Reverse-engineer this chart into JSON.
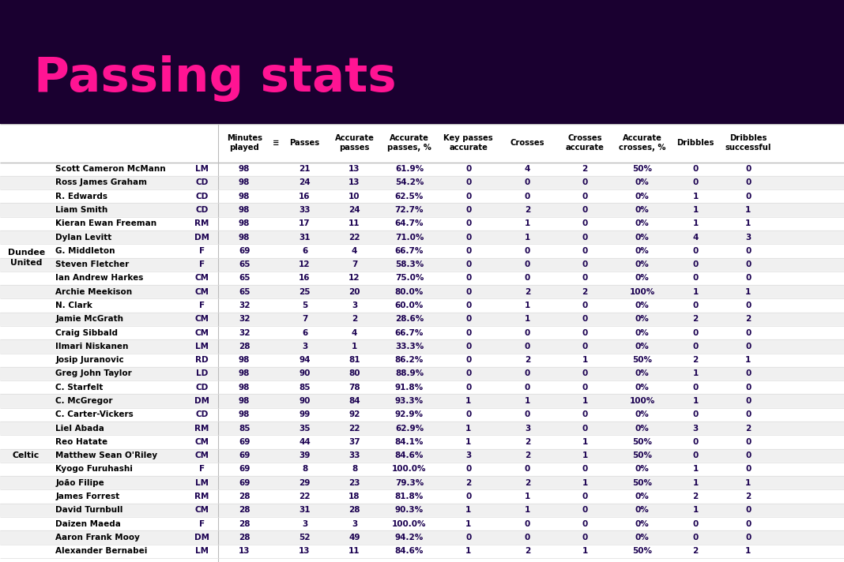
{
  "title": "Passing stats",
  "title_color": "#FF1493",
  "bg_color": "#1a0030",
  "table_bg": "#ffffff",
  "col_headers": [
    "Minutes\nplayed",
    "≡",
    "Passes",
    "Accurate\npasses",
    "Accurate\npasses, %",
    "Key passes\naccurate",
    "Crosses",
    "Crosses\naccurate",
    "Accurate\ncrosses, %",
    "Dribbles",
    "Dribbles\nsuccessful"
  ],
  "rows": [
    [
      "Scott Cameron McMann",
      "LM",
      "98",
      "21",
      "13",
      "61.9%",
      "0",
      "4",
      "2",
      "50%",
      "0",
      "0"
    ],
    [
      "Ross James Graham",
      "CD",
      "98",
      "24",
      "13",
      "54.2%",
      "0",
      "0",
      "0",
      "0%",
      "0",
      "0"
    ],
    [
      "R. Edwards",
      "CD",
      "98",
      "16",
      "10",
      "62.5%",
      "0",
      "0",
      "0",
      "0%",
      "1",
      "0"
    ],
    [
      "Liam Smith",
      "CD",
      "98",
      "33",
      "24",
      "72.7%",
      "0",
      "2",
      "0",
      "0%",
      "1",
      "1"
    ],
    [
      "Kieran Ewan Freeman",
      "RM",
      "98",
      "17",
      "11",
      "64.7%",
      "0",
      "1",
      "0",
      "0%",
      "1",
      "1"
    ],
    [
      "Dylan Levitt",
      "DM",
      "98",
      "31",
      "22",
      "71.0%",
      "0",
      "1",
      "0",
      "0%",
      "4",
      "3"
    ],
    [
      "G. Middleton",
      "F",
      "69",
      "6",
      "4",
      "66.7%",
      "0",
      "0",
      "0",
      "0%",
      "0",
      "0"
    ],
    [
      "Steven Fletcher",
      "F",
      "65",
      "12",
      "7",
      "58.3%",
      "0",
      "0",
      "0",
      "0%",
      "0",
      "0"
    ],
    [
      "Ian Andrew Harkes",
      "CM",
      "65",
      "16",
      "12",
      "75.0%",
      "0",
      "0",
      "0",
      "0%",
      "0",
      "0"
    ],
    [
      "Archie Meekison",
      "CM",
      "65",
      "25",
      "20",
      "80.0%",
      "0",
      "2",
      "2",
      "100%",
      "1",
      "1"
    ],
    [
      "N. Clark",
      "F",
      "32",
      "5",
      "3",
      "60.0%",
      "0",
      "1",
      "0",
      "0%",
      "0",
      "0"
    ],
    [
      "Jamie McGrath",
      "CM",
      "32",
      "7",
      "2",
      "28.6%",
      "0",
      "1",
      "0",
      "0%",
      "2",
      "2"
    ],
    [
      "Craig Sibbald",
      "CM",
      "32",
      "6",
      "4",
      "66.7%",
      "0",
      "0",
      "0",
      "0%",
      "0",
      "0"
    ],
    [
      "Ilmari Niskanen",
      "LM",
      "28",
      "3",
      "1",
      "33.3%",
      "0",
      "0",
      "0",
      "0%",
      "0",
      "0"
    ],
    [
      "Josip Juranovic",
      "RD",
      "98",
      "94",
      "81",
      "86.2%",
      "0",
      "2",
      "1",
      "50%",
      "2",
      "1"
    ],
    [
      "Greg John Taylor",
      "LD",
      "98",
      "90",
      "80",
      "88.9%",
      "0",
      "0",
      "0",
      "0%",
      "1",
      "0"
    ],
    [
      "C. Starfelt",
      "CD",
      "98",
      "85",
      "78",
      "91.8%",
      "0",
      "0",
      "0",
      "0%",
      "0",
      "0"
    ],
    [
      "C. McGregor",
      "DM",
      "98",
      "90",
      "84",
      "93.3%",
      "1",
      "1",
      "1",
      "100%",
      "1",
      "0"
    ],
    [
      "C. Carter-Vickers",
      "CD",
      "98",
      "99",
      "92",
      "92.9%",
      "0",
      "0",
      "0",
      "0%",
      "0",
      "0"
    ],
    [
      "Liel Abada",
      "RM",
      "85",
      "35",
      "22",
      "62.9%",
      "1",
      "3",
      "0",
      "0%",
      "3",
      "2"
    ],
    [
      "Reo Hatate",
      "CM",
      "69",
      "44",
      "37",
      "84.1%",
      "1",
      "2",
      "1",
      "50%",
      "0",
      "0"
    ],
    [
      "Matthew Sean O'Riley",
      "CM",
      "69",
      "39",
      "33",
      "84.6%",
      "3",
      "2",
      "1",
      "50%",
      "0",
      "0"
    ],
    [
      "Kyogo Furuhashi",
      "F",
      "69",
      "8",
      "8",
      "100.0%",
      "0",
      "0",
      "0",
      "0%",
      "1",
      "0"
    ],
    [
      "João Filipe",
      "LM",
      "69",
      "29",
      "23",
      "79.3%",
      "2",
      "2",
      "1",
      "50%",
      "1",
      "1"
    ],
    [
      "James Forrest",
      "RM",
      "28",
      "22",
      "18",
      "81.8%",
      "0",
      "1",
      "0",
      "0%",
      "2",
      "2"
    ],
    [
      "David Turnbull",
      "CM",
      "28",
      "31",
      "28",
      "90.3%",
      "1",
      "1",
      "0",
      "0%",
      "1",
      "0"
    ],
    [
      "Daizen Maeda",
      "F",
      "28",
      "3",
      "3",
      "100.0%",
      "1",
      "0",
      "0",
      "0%",
      "0",
      "0"
    ],
    [
      "Aaron Frank Mooy",
      "DM",
      "28",
      "52",
      "49",
      "94.2%",
      "0",
      "0",
      "0",
      "0%",
      "0",
      "0"
    ],
    [
      "Alexander Bernabei",
      "LM",
      "13",
      "13",
      "11",
      "84.6%",
      "1",
      "2",
      "1",
      "50%",
      "2",
      "1"
    ]
  ],
  "alt_row_color": "#f0f0f0",
  "normal_row_color": "#ffffff",
  "du_rows": [
    0,
    13
  ],
  "celtic_rows": [
    14,
    28
  ]
}
